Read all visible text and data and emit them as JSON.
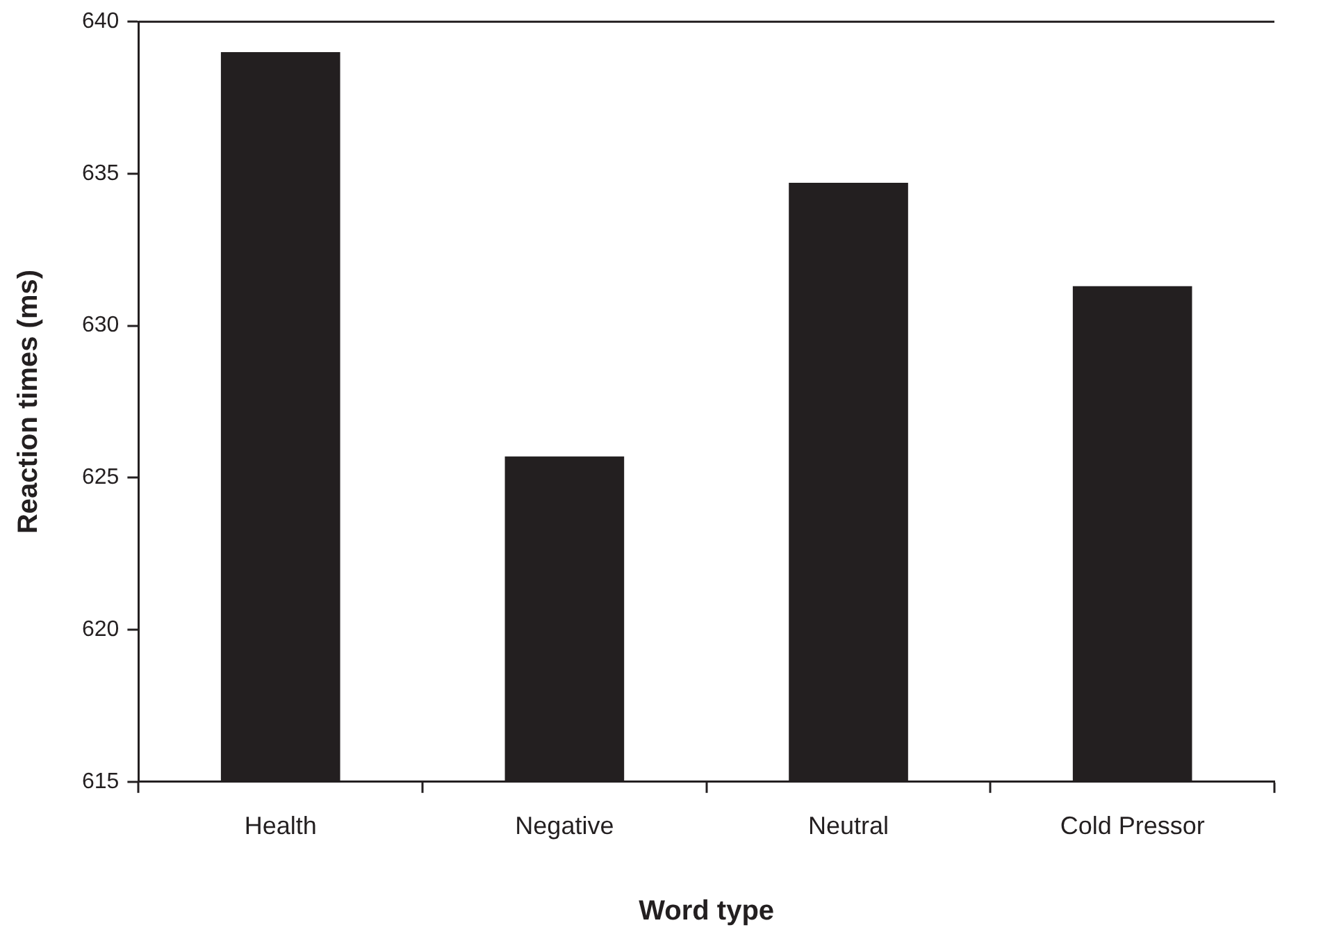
{
  "chart_data": {
    "type": "bar",
    "xlabel": "Word type",
    "ylabel": "Reaction times (ms)",
    "categories": [
      "Health",
      "Negative",
      "Neutral",
      "Cold Pressor"
    ],
    "values": [
      639.0,
      625.7,
      634.7,
      631.3
    ],
    "color": "#231f20",
    "ylim": [
      615,
      640
    ],
    "yticks": [
      615,
      620,
      625,
      630,
      635,
      640
    ],
    "grid": false,
    "legend": false
  }
}
